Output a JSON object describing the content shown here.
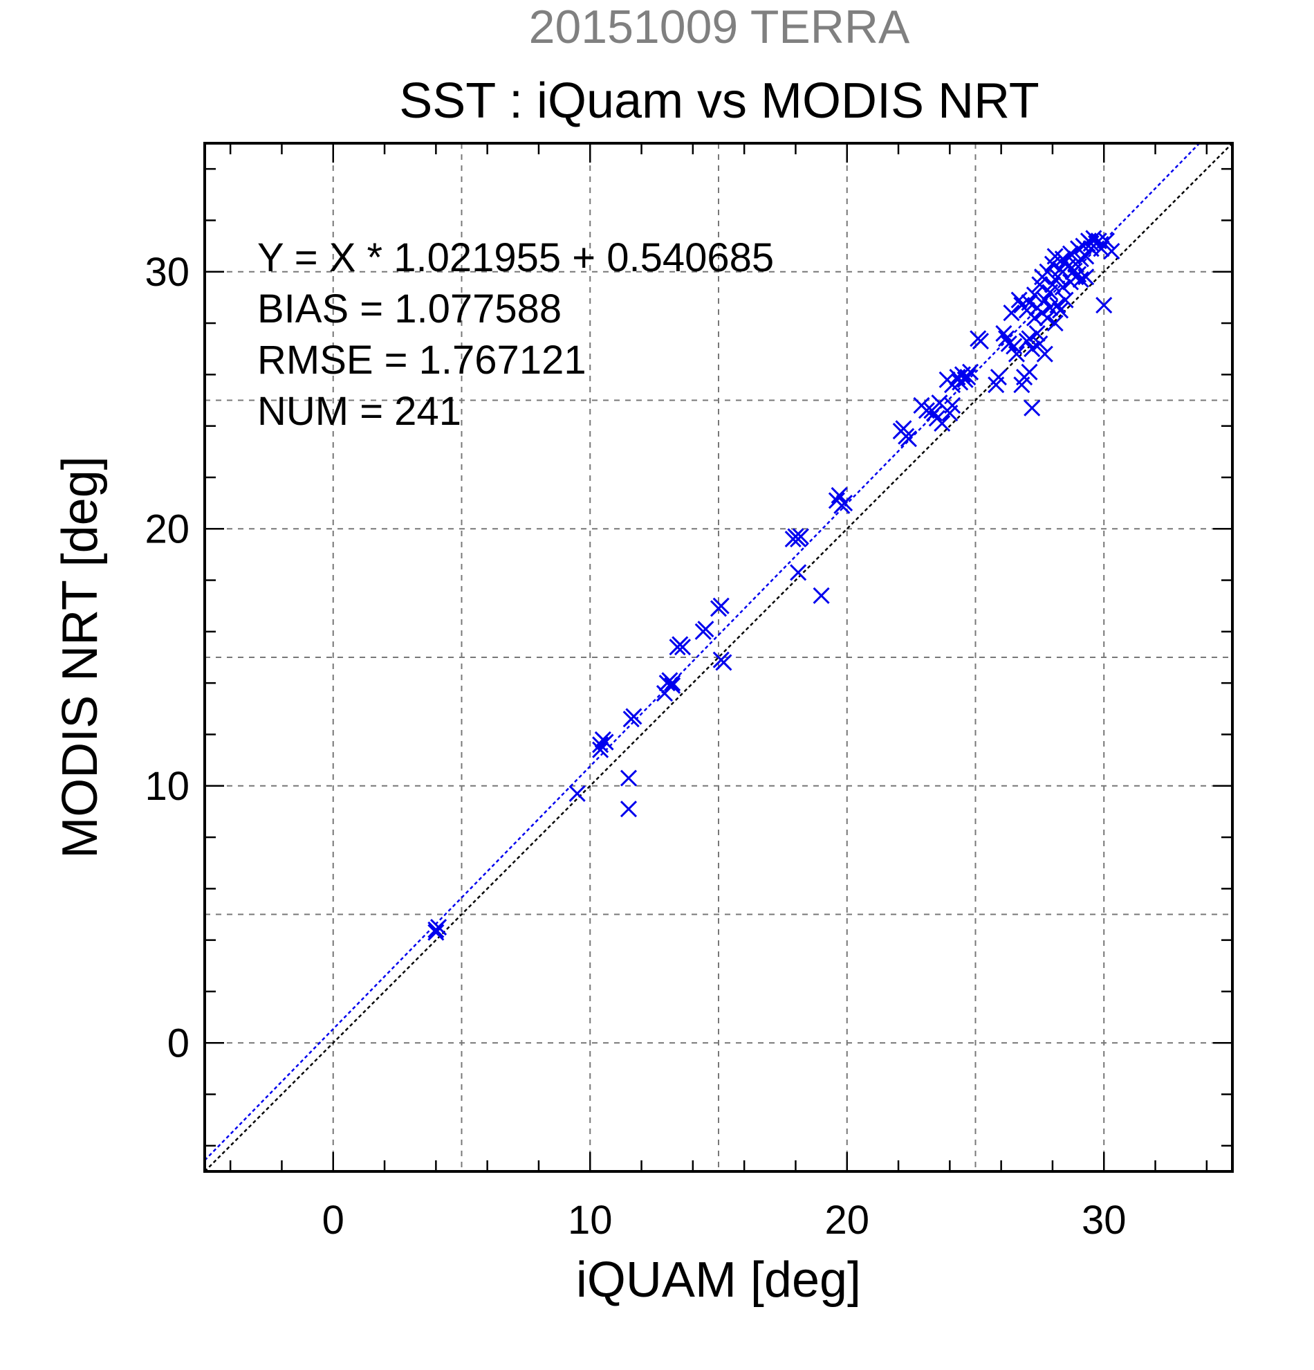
{
  "chart_data": {
    "type": "scatter",
    "title": "SST : iQuam vs MODIS NRT",
    "subtitle": "20151009 TERRA",
    "xlabel": "iQUAM [deg]",
    "ylabel": "MODIS NRT [deg]",
    "xlim": [
      -5,
      35
    ],
    "ylim": [
      -5,
      35
    ],
    "x_ticks": [
      "0",
      "10",
      "20",
      "30"
    ],
    "y_ticks": [
      "0",
      "10",
      "20",
      "30"
    ],
    "grid": true,
    "annotations": [
      "Y = X * 1.021955 + 0.540685",
      "BIAS = 1.077588",
      "RMSE = 1.767121",
      "NUM = 241"
    ],
    "fit_line": {
      "slope": 1.021955,
      "intercept": 0.540685
    },
    "colors": {
      "points": "#0000ee",
      "fit": "#0000ee",
      "identity": "#000000",
      "grid": "#777777",
      "subtitle": "#808080"
    },
    "points": [
      [
        4.0,
        4.3
      ],
      [
        4.1,
        4.5
      ],
      [
        4.0,
        4.4
      ],
      [
        9.5,
        9.7
      ],
      [
        10.4,
        11.6
      ],
      [
        10.5,
        11.8
      ],
      [
        10.6,
        11.7
      ],
      [
        10.4,
        11.4
      ],
      [
        11.5,
        10.3
      ],
      [
        11.5,
        9.1
      ],
      [
        11.6,
        12.6
      ],
      [
        11.7,
        12.7
      ],
      [
        12.9,
        13.6
      ],
      [
        13.0,
        14.0
      ],
      [
        13.1,
        14.1
      ],
      [
        13.2,
        13.9
      ],
      [
        13.2,
        14.0
      ],
      [
        13.4,
        15.4
      ],
      [
        13.5,
        15.5
      ],
      [
        13.6,
        15.4
      ],
      [
        14.4,
        16.0
      ],
      [
        14.5,
        16.1
      ],
      [
        15.0,
        16.9
      ],
      [
        15.1,
        17.0
      ],
      [
        15.1,
        14.9
      ],
      [
        15.2,
        14.8
      ],
      [
        17.9,
        19.6
      ],
      [
        18.0,
        19.7
      ],
      [
        18.1,
        19.6
      ],
      [
        18.2,
        19.7
      ],
      [
        18.1,
        18.3
      ],
      [
        19.0,
        17.4
      ],
      [
        19.6,
        21.1
      ],
      [
        19.7,
        21.3
      ],
      [
        19.8,
        20.9
      ],
      [
        19.9,
        21.0
      ],
      [
        22.1,
        23.8
      ],
      [
        22.2,
        23.9
      ],
      [
        22.3,
        23.6
      ],
      [
        22.4,
        23.5
      ],
      [
        22.9,
        24.8
      ],
      [
        23.1,
        24.6
      ],
      [
        23.3,
        24.6
      ],
      [
        23.4,
        24.5
      ],
      [
        23.5,
        24.3
      ],
      [
        23.6,
        24.9
      ],
      [
        23.7,
        24.1
      ],
      [
        23.9,
        25.8
      ],
      [
        24.0,
        24.5
      ],
      [
        24.1,
        25.6
      ],
      [
        24.1,
        24.8
      ],
      [
        24.3,
        25.9
      ],
      [
        24.4,
        25.7
      ],
      [
        24.5,
        26.0
      ],
      [
        24.6,
        25.8
      ],
      [
        24.7,
        25.9
      ],
      [
        24.8,
        26.1
      ],
      [
        25.1,
        27.4
      ],
      [
        25.2,
        27.3
      ],
      [
        25.8,
        25.6
      ],
      [
        25.9,
        25.9
      ],
      [
        26.1,
        27.6
      ],
      [
        26.2,
        27.4
      ],
      [
        26.3,
        27.2
      ],
      [
        26.4,
        28.4
      ],
      [
        26.5,
        27.1
      ],
      [
        26.6,
        26.8
      ],
      [
        26.7,
        28.9
      ],
      [
        26.8,
        28.7
      ],
      [
        26.8,
        25.6
      ],
      [
        26.9,
        25.9
      ],
      [
        27.0,
        27.3
      ],
      [
        27.0,
        28.5
      ],
      [
        27.1,
        28.8
      ],
      [
        27.1,
        27.4
      ],
      [
        27.1,
        26.1
      ],
      [
        27.2,
        27.0
      ],
      [
        27.2,
        24.7
      ],
      [
        27.3,
        28.2
      ],
      [
        27.3,
        29.1
      ],
      [
        27.4,
        27.6
      ],
      [
        27.4,
        28.6
      ],
      [
        27.5,
        29.5
      ],
      [
        27.5,
        27.2
      ],
      [
        27.6,
        28.4
      ],
      [
        27.6,
        29.8
      ],
      [
        27.7,
        28.9
      ],
      [
        27.7,
        26.8
      ],
      [
        27.8,
        28.2
      ],
      [
        27.8,
        30.0
      ],
      [
        27.9,
        29.2
      ],
      [
        27.9,
        28.6
      ],
      [
        28.0,
        30.3
      ],
      [
        28.0,
        29.5
      ],
      [
        28.1,
        28.0
      ],
      [
        28.1,
        30.6
      ],
      [
        28.2,
        29.8
      ],
      [
        28.2,
        28.7
      ],
      [
        28.3,
        30.1
      ],
      [
        28.3,
        28.5
      ],
      [
        28.4,
        30.5
      ],
      [
        28.4,
        29.4
      ],
      [
        28.5,
        30.4
      ],
      [
        28.5,
        28.9
      ],
      [
        28.6,
        30.2
      ],
      [
        28.7,
        29.6
      ],
      [
        28.7,
        30.7
      ],
      [
        28.8,
        30.0
      ],
      [
        28.9,
        30.3
      ],
      [
        28.9,
        29.8
      ],
      [
        29.0,
        30.9
      ],
      [
        29.0,
        29.9
      ],
      [
        29.1,
        30.5
      ],
      [
        29.1,
        29.7
      ],
      [
        29.2,
        31.0
      ],
      [
        29.3,
        30.6
      ],
      [
        29.3,
        29.8
      ],
      [
        29.4,
        31.2
      ],
      [
        29.5,
        31.1
      ],
      [
        29.5,
        30.9
      ],
      [
        29.6,
        31.3
      ],
      [
        29.7,
        31.1
      ],
      [
        29.8,
        31.2
      ],
      [
        29.9,
        30.9
      ],
      [
        30.0,
        28.7
      ],
      [
        30.1,
        31.2
      ],
      [
        30.3,
        30.8
      ]
    ]
  }
}
